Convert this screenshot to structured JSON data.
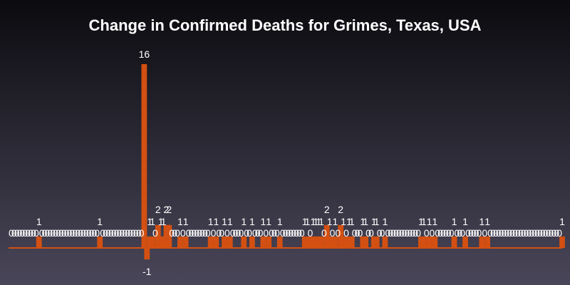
{
  "colors": {
    "background_top": "#0b0b0f",
    "background_bottom": "#4a4659",
    "bar": "#d35012",
    "text": "#ffffff"
  },
  "chart_data": {
    "type": "bar",
    "title": "Change in Confirmed Deaths for Grimes, Texas, USA",
    "xlabel": "",
    "ylabel": "",
    "ylim": [
      -1,
      16
    ],
    "grid": false,
    "legend": "none",
    "data_labels": true,
    "n_bars": 200,
    "nonzero_bars": [
      {
        "index": 10,
        "value": 1
      },
      {
        "index": 32,
        "value": 1
      },
      {
        "index": 48,
        "value": 16
      },
      {
        "index": 49,
        "value": -1
      },
      {
        "index": 50,
        "value": 1
      },
      {
        "index": 51,
        "value": 1
      },
      {
        "index": 53,
        "value": 2
      },
      {
        "index": 54,
        "value": 1
      },
      {
        "index": 55,
        "value": 1
      },
      {
        "index": 56,
        "value": 2
      },
      {
        "index": 57,
        "value": 2
      },
      {
        "index": 61,
        "value": 1
      },
      {
        "index": 63,
        "value": 1
      },
      {
        "index": 72,
        "value": 1
      },
      {
        "index": 74,
        "value": 1
      },
      {
        "index": 77,
        "value": 1
      },
      {
        "index": 79,
        "value": 1
      },
      {
        "index": 84,
        "value": 1
      },
      {
        "index": 87,
        "value": 1
      },
      {
        "index": 91,
        "value": 1
      },
      {
        "index": 93,
        "value": 1
      },
      {
        "index": 97,
        "value": 1
      },
      {
        "index": 106,
        "value": 1
      },
      {
        "index": 107,
        "value": 1
      },
      {
        "index": 109,
        "value": 1
      },
      {
        "index": 110,
        "value": 1
      },
      {
        "index": 111,
        "value": 1
      },
      {
        "index": 112,
        "value": 1
      },
      {
        "index": 114,
        "value": 2
      },
      {
        "index": 115,
        "value": 1
      },
      {
        "index": 117,
        "value": 1
      },
      {
        "index": 119,
        "value": 2
      },
      {
        "index": 120,
        "value": 1
      },
      {
        "index": 122,
        "value": 1
      },
      {
        "index": 123,
        "value": 1
      },
      {
        "index": 127,
        "value": 1
      },
      {
        "index": 128,
        "value": 1
      },
      {
        "index": 131,
        "value": 1
      },
      {
        "index": 132,
        "value": 1
      },
      {
        "index": 135,
        "value": 1
      },
      {
        "index": 148,
        "value": 1
      },
      {
        "index": 149,
        "value": 1
      },
      {
        "index": 151,
        "value": 1
      },
      {
        "index": 153,
        "value": 1
      },
      {
        "index": 160,
        "value": 1
      },
      {
        "index": 164,
        "value": 1
      },
      {
        "index": 170,
        "value": 1
      },
      {
        "index": 172,
        "value": 1
      },
      {
        "index": 199,
        "value": 1
      }
    ]
  }
}
